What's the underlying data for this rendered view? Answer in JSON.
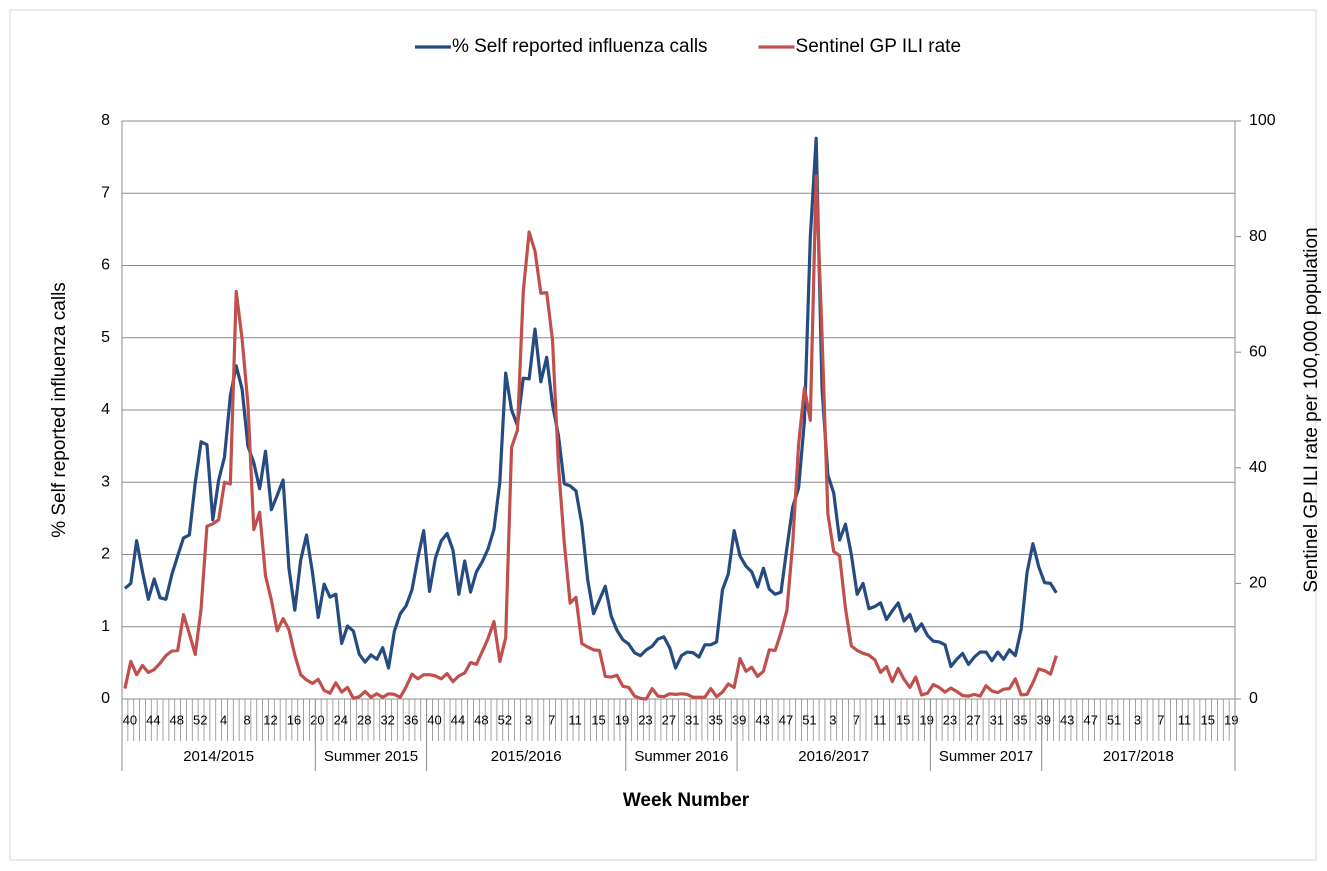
{
  "chart_data": {
    "type": "line",
    "x_label": "Week Number",
    "y_label": "% Self reported influenza calls",
    "y2_label": "Sentinel GP ILI rate per 100,000 population",
    "ylim": [
      0,
      8
    ],
    "yticks": [
      0,
      1,
      2,
      3,
      4,
      5,
      6,
      7,
      8
    ],
    "y2lim": [
      0,
      100
    ],
    "y2ticks": [
      0,
      20,
      40,
      60,
      80,
      100
    ],
    "grid": true,
    "legend": "top",
    "categories": [
      "40",
      null,
      null,
      null,
      "44",
      null,
      null,
      null,
      "48",
      null,
      null,
      null,
      "52",
      null,
      null,
      null,
      "4",
      null,
      null,
      null,
      "8",
      null,
      null,
      null,
      "12",
      null,
      null,
      null,
      "16",
      null,
      null,
      null,
      "20",
      null,
      null,
      null,
      "24",
      null,
      null,
      null,
      "28",
      null,
      null,
      null,
      "32",
      null,
      null,
      null,
      "36",
      null,
      null,
      null,
      "40",
      null,
      null,
      null,
      "44",
      null,
      null,
      null,
      "48",
      null,
      null,
      null,
      "52",
      null,
      null,
      null,
      "3",
      null,
      null,
      null,
      "7",
      null,
      null,
      null,
      "11",
      null,
      null,
      null,
      "15",
      null,
      null,
      null,
      "19",
      null,
      null,
      null,
      "23",
      null,
      null,
      null,
      "27",
      null,
      null,
      null,
      "31",
      null,
      null,
      null,
      "35",
      null,
      null,
      null,
      "39",
      null,
      null,
      null,
      "43",
      null,
      null,
      null,
      "47",
      null,
      null,
      null,
      "51",
      null,
      null,
      null,
      "3",
      null,
      null,
      null,
      "7",
      null,
      null,
      null,
      "11",
      null,
      null,
      null,
      "15",
      null,
      null,
      null,
      "19",
      null,
      null,
      null,
      "23",
      null,
      null,
      null,
      "27",
      null,
      null,
      null,
      "31",
      null,
      null,
      null,
      "35",
      null,
      null,
      null,
      "39",
      null,
      null,
      null,
      "43",
      null,
      null,
      null,
      "47",
      null,
      null,
      null,
      "51",
      null,
      null,
      null,
      "3",
      null,
      null,
      null,
      "7",
      null,
      null,
      null,
      "11",
      null,
      null,
      null,
      "15",
      null,
      null,
      null,
      "19",
      null
    ],
    "groups": [
      {
        "label": "2014/2015",
        "span": 33
      },
      {
        "label": "Summer 2015",
        "span": 19
      },
      {
        "label": "2015/2016",
        "span": 34
      },
      {
        "label": "Summer 2016",
        "span": 19
      },
      {
        "label": "2016/2017",
        "span": 33
      },
      {
        "label": "Summer 2017",
        "span": 19
      },
      {
        "label": "2017/2018",
        "span": 33
      }
    ],
    "series": [
      {
        "name": "% Self reported influenza calls",
        "color": "#254b80",
        "axis": "y",
        "values": [
          1.53,
          1.6,
          2.19,
          1.76,
          1.38,
          1.66,
          1.4,
          1.38,
          1.72,
          1.98,
          2.23,
          2.27,
          2.99,
          3.56,
          3.52,
          2.48,
          3.03,
          3.35,
          4.2,
          4.61,
          4.29,
          3.5,
          3.27,
          2.91,
          3.43,
          2.62,
          2.82,
          3.03,
          1.81,
          1.23,
          1.92,
          2.27,
          1.76,
          1.13,
          1.59,
          1.41,
          1.45,
          0.77,
          1.01,
          0.94,
          0.62,
          0.51,
          0.61,
          0.55,
          0.71,
          0.43,
          0.94,
          1.18,
          1.29,
          1.51,
          1.95,
          2.33,
          1.49,
          1.95,
          2.19,
          2.29,
          2.06,
          1.45,
          1.91,
          1.48,
          1.76,
          1.9,
          2.08,
          2.35,
          3.0,
          4.51,
          4.0,
          3.79,
          4.44,
          4.43,
          5.12,
          4.39,
          4.73,
          4.07,
          3.65,
          2.98,
          2.95,
          2.88,
          2.42,
          1.65,
          1.18,
          1.37,
          1.56,
          1.15,
          0.95,
          0.82,
          0.76,
          0.64,
          0.6,
          0.68,
          0.73,
          0.83,
          0.86,
          0.71,
          0.43,
          0.6,
          0.65,
          0.64,
          0.58,
          0.75,
          0.75,
          0.79,
          1.51,
          1.73,
          2.33,
          1.98,
          1.84,
          1.76,
          1.55,
          1.81,
          1.52,
          1.45,
          1.48,
          2.09,
          2.66,
          2.92,
          3.85,
          6.39,
          7.76,
          4.3,
          3.1,
          2.85,
          2.2,
          2.42,
          2.0,
          1.45,
          1.6,
          1.25,
          1.28,
          1.33,
          1.1,
          1.22,
          1.33,
          1.08,
          1.17,
          0.94,
          1.04,
          0.88,
          0.8,
          0.79,
          0.75,
          0.45,
          0.55,
          0.63,
          0.48,
          0.58,
          0.65,
          0.65,
          0.53,
          0.65,
          0.55,
          0.68,
          0.6,
          0.97,
          1.75,
          2.15,
          1.83,
          1.61,
          1.6,
          1.47,
          null,
          null,
          null,
          null,
          null,
          null,
          null,
          null,
          null,
          null,
          null,
          null,
          null,
          null,
          null,
          null,
          null,
          null,
          null,
          null,
          null,
          null,
          null,
          null,
          null,
          null,
          null,
          null,
          null,
          null
        ]
      },
      {
        "name": "Sentinel GP ILI rate",
        "color": "#c0504d",
        "axis": "y2",
        "values": [
          1.8,
          6.5,
          4.2,
          5.8,
          4.6,
          5.1,
          6.2,
          7.5,
          8.3,
          8.4,
          14.6,
          11.3,
          7.7,
          15.6,
          29.9,
          30.3,
          31.0,
          37.5,
          37.2,
          70.5,
          62.3,
          51.0,
          29.3,
          32.3,
          21.3,
          17.1,
          11.8,
          13.9,
          12.0,
          7.6,
          4.2,
          3.3,
          2.7,
          3.4,
          1.5,
          1.0,
          2.8,
          1.2,
          2.0,
          0.1,
          0.4,
          1.3,
          0.3,
          0.9,
          0.3,
          0.9,
          0.8,
          0.3,
          2.1,
          4.3,
          3.5,
          4.2,
          4.2,
          4.0,
          3.5,
          4.4,
          3.0,
          4.0,
          4.5,
          6.3,
          6.0,
          8.2,
          10.5,
          13.4,
          6.5,
          10.6,
          43.5,
          46.5,
          70.5,
          80.8,
          77.5,
          70.2,
          70.3,
          62.0,
          40.5,
          27.0,
          16.6,
          17.6,
          9.6,
          9.0,
          8.5,
          8.4,
          3.9,
          3.8,
          4.1,
          2.2,
          2.0,
          0.5,
          0.1,
          0.0,
          1.8,
          0.5,
          0.4,
          0.9,
          0.8,
          0.9,
          0.8,
          0.3,
          0.3,
          0.3,
          1.8,
          0.4,
          1.2,
          2.6,
          2.0,
          7.0,
          4.8,
          5.5,
          3.9,
          4.8,
          8.5,
          8.4,
          11.5,
          15.3,
          27.0,
          44.0,
          53.8,
          48.2,
          90.5,
          63.0,
          32.0,
          25.5,
          24.8,
          15.7,
          9.2,
          8.4,
          7.9,
          7.6,
          6.8,
          4.6,
          5.6,
          3.0,
          5.3,
          3.4,
          2.0,
          3.8,
          0.7,
          1.0,
          2.5,
          2.0,
          1.2,
          1.9,
          1.3,
          0.6,
          0.5,
          0.8,
          0.5,
          2.3,
          1.4,
          1.1,
          1.7,
          1.8,
          3.5,
          0.7,
          0.8,
          2.8,
          5.2,
          4.9,
          4.3,
          7.5,
          null,
          null,
          null,
          null,
          null,
          null,
          null,
          null,
          null,
          null,
          null,
          null,
          null,
          null,
          null,
          null,
          null,
          null,
          null,
          null,
          null,
          null,
          null,
          null,
          null,
          null,
          null,
          null,
          null,
          null
        ]
      }
    ]
  }
}
